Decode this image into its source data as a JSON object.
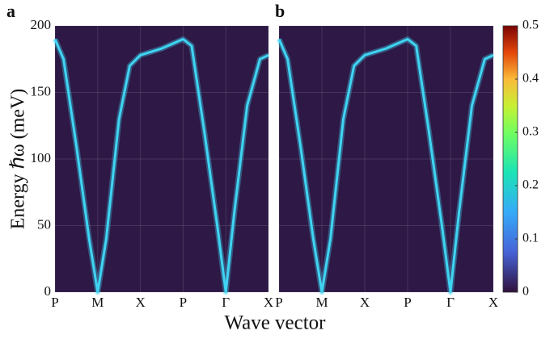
{
  "chart_data": [
    {
      "type": "heatmap",
      "panel_label": "a",
      "ylabel": "Energy ℏω (meV)",
      "xlabel": "Wave vector",
      "ylim": [
        0,
        200
      ],
      "yticks": [
        0,
        50,
        100,
        150,
        200
      ],
      "xlim": [
        0,
        5
      ],
      "xticks": [
        {
          "value": 0,
          "label": "P"
        },
        {
          "value": 1,
          "label": "M"
        },
        {
          "value": 2,
          "label": "X"
        },
        {
          "value": 3,
          "label": "P"
        },
        {
          "value": 4,
          "label": "Γ"
        },
        {
          "value": 5,
          "label": "X"
        }
      ],
      "background": "#2e1845",
      "grid": true,
      "series": [
        {
          "color": "#3fd4f2",
          "x": [
            0,
            0.2,
            0.5,
            0.8,
            1.0,
            1.2,
            1.5,
            1.75,
            2,
            2.5,
            3,
            3.2,
            3.5,
            3.8,
            4,
            4.2,
            4.5,
            4.8,
            5
          ],
          "values": [
            190,
            175,
            110,
            40,
            0,
            40,
            130,
            170,
            178,
            183,
            190,
            185,
            120,
            50,
            0,
            60,
            140,
            175,
            178
          ]
        }
      ]
    },
    {
      "type": "heatmap",
      "panel_label": "b",
      "ylim": [
        0,
        200
      ],
      "yticks": [
        0,
        50,
        100,
        150,
        200
      ],
      "xlim": [
        0,
        5
      ],
      "xticks": [
        {
          "value": 0,
          "label": "P"
        },
        {
          "value": 1,
          "label": "M"
        },
        {
          "value": 2,
          "label": "X"
        },
        {
          "value": 3,
          "label": "P"
        },
        {
          "value": 4,
          "label": "Γ"
        },
        {
          "value": 5,
          "label": "X"
        }
      ],
      "background": "#2e1845",
      "grid": true,
      "series": [
        {
          "color": "#3fd4f2",
          "x": [
            0,
            0.2,
            0.5,
            0.8,
            1.0,
            1.2,
            1.5,
            1.75,
            2,
            2.5,
            3,
            3.2,
            3.5,
            3.8,
            4,
            4.2,
            4.5,
            4.8,
            5
          ],
          "values": [
            190,
            175,
            110,
            40,
            0,
            40,
            130,
            170,
            178,
            183,
            190,
            185,
            120,
            50,
            0,
            60,
            140,
            175,
            178
          ]
        }
      ],
      "colorbar": {
        "lim": [
          0,
          0.5
        ],
        "ticks": [
          0,
          0.1,
          0.2,
          0.3,
          0.4,
          0.5
        ]
      }
    }
  ]
}
